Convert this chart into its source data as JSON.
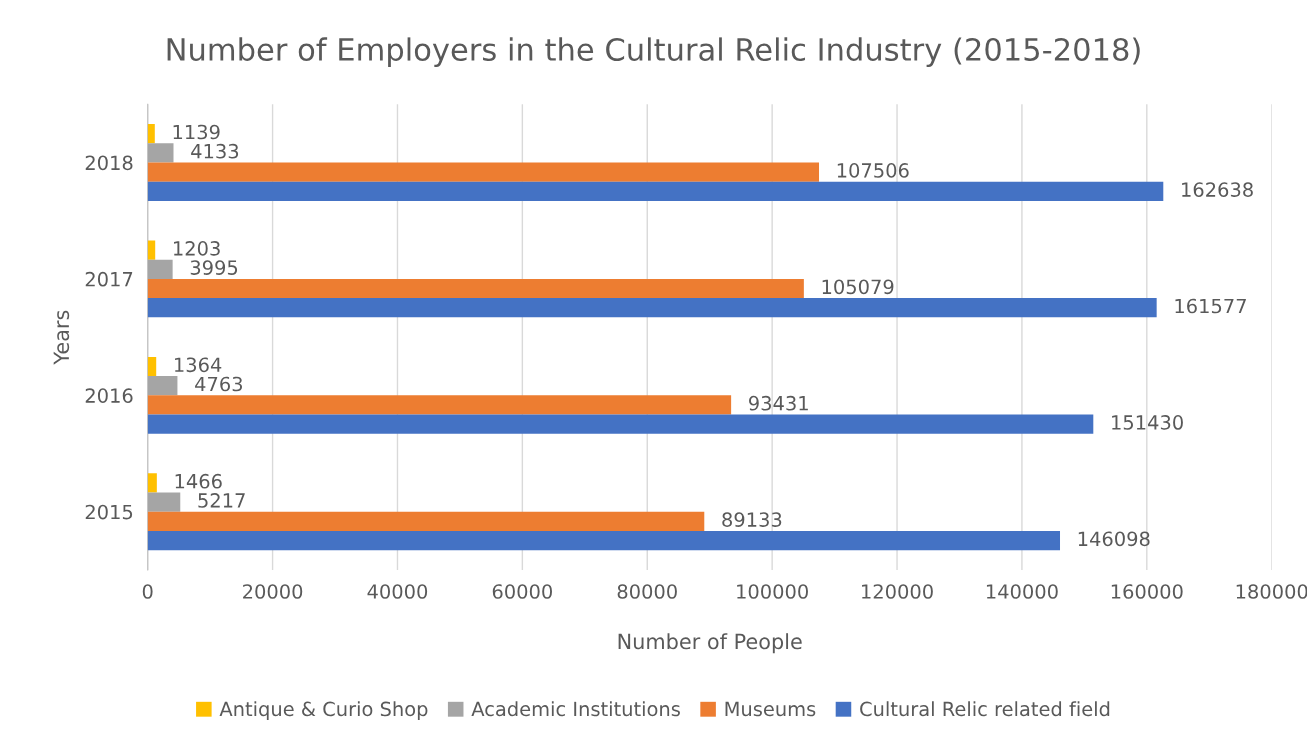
{
  "chart_data": {
    "type": "bar",
    "orientation": "horizontal",
    "title": "Number of Employers in the Cultural Relic Industry (2015-2018)",
    "xlabel": "Number of People",
    "ylabel": "Years",
    "categories": [
      "2018",
      "2017",
      "2016",
      "2015"
    ],
    "series": [
      {
        "name": "Antique & Curio Shop",
        "color": "#ffc000",
        "values": [
          1139,
          1203,
          1364,
          1466
        ]
      },
      {
        "name": "Academic Institutions",
        "color": "#a5a5a5",
        "values": [
          4133,
          3995,
          4763,
          5217
        ]
      },
      {
        "name": "Museums",
        "color": "#ed7d31",
        "values": [
          107506,
          105079,
          93431,
          89133
        ]
      },
      {
        "name": "Cultural Relic related field",
        "color": "#4472c4",
        "values": [
          162638,
          161577,
          151430,
          146098
        ]
      }
    ],
    "xlim": [
      0,
      180000
    ],
    "xticks": [
      0,
      20000,
      40000,
      60000,
      80000,
      100000,
      120000,
      140000,
      160000,
      180000
    ],
    "grid": "x",
    "legend": "bottom",
    "data_labels": true
  }
}
